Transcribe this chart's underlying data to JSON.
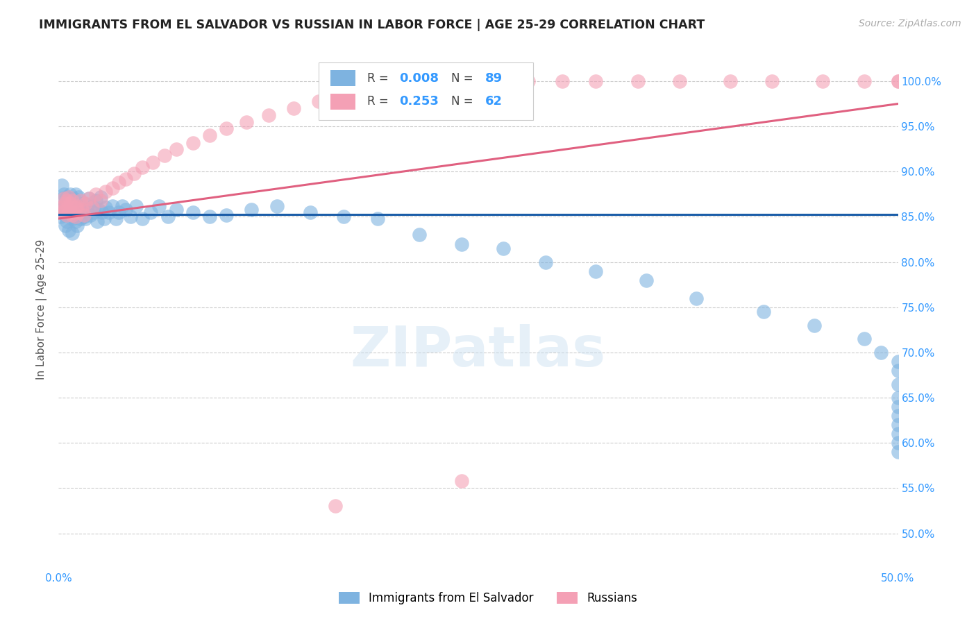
{
  "title": "IMMIGRANTS FROM EL SALVADOR VS RUSSIAN IN LABOR FORCE | AGE 25-29 CORRELATION CHART",
  "source": "Source: ZipAtlas.com",
  "ylabel": "In Labor Force | Age 25-29",
  "xlim": [
    0.0,
    0.5
  ],
  "ylim": [
    0.46,
    1.035
  ],
  "yticks": [
    0.5,
    0.55,
    0.6,
    0.65,
    0.7,
    0.75,
    0.8,
    0.85,
    0.9,
    0.95,
    1.0
  ],
  "ytick_labels": [
    "50.0%",
    "55.0%",
    "60.0%",
    "65.0%",
    "70.0%",
    "75.0%",
    "80.0%",
    "85.0%",
    "90.0%",
    "95.0%",
    "100.0%"
  ],
  "xticks": [
    0.0,
    0.05,
    0.1,
    0.15,
    0.2,
    0.25,
    0.3,
    0.35,
    0.4,
    0.45,
    0.5
  ],
  "xtick_labels": [
    "0.0%",
    "",
    "",
    "",
    "",
    "",
    "",
    "",
    "",
    "",
    "50.0%"
  ],
  "color_salvador": "#7EB3E0",
  "color_russian": "#F4A0B5",
  "color_line_salvador": "#1B5DA8",
  "color_line_russian": "#E06080",
  "sal_line_y0": 0.853,
  "sal_line_y1": 0.853,
  "rus_line_y0": 0.848,
  "rus_line_y1": 0.975,
  "sal_x": [
    0.001,
    0.002,
    0.002,
    0.003,
    0.003,
    0.003,
    0.004,
    0.004,
    0.004,
    0.005,
    0.005,
    0.005,
    0.006,
    0.006,
    0.006,
    0.007,
    0.007,
    0.008,
    0.008,
    0.008,
    0.009,
    0.009,
    0.01,
    0.01,
    0.01,
    0.011,
    0.011,
    0.012,
    0.012,
    0.013,
    0.013,
    0.014,
    0.015,
    0.015,
    0.016,
    0.017,
    0.018,
    0.019,
    0.02,
    0.021,
    0.022,
    0.023,
    0.024,
    0.025,
    0.026,
    0.027,
    0.028,
    0.03,
    0.032,
    0.034,
    0.036,
    0.038,
    0.04,
    0.043,
    0.046,
    0.05,
    0.055,
    0.06,
    0.065,
    0.07,
    0.08,
    0.09,
    0.1,
    0.115,
    0.13,
    0.15,
    0.17,
    0.19,
    0.215,
    0.24,
    0.265,
    0.29,
    0.32,
    0.35,
    0.38,
    0.42,
    0.45,
    0.48,
    0.49,
    0.5,
    0.5,
    0.5,
    0.5,
    0.5,
    0.5,
    0.5,
    0.5,
    0.5,
    0.5
  ],
  "sal_y": [
    0.85,
    0.87,
    0.885,
    0.86,
    0.875,
    0.855,
    0.852,
    0.865,
    0.84,
    0.858,
    0.872,
    0.845,
    0.855,
    0.868,
    0.835,
    0.86,
    0.875,
    0.848,
    0.862,
    0.832,
    0.856,
    0.87,
    0.845,
    0.86,
    0.875,
    0.852,
    0.84,
    0.858,
    0.872,
    0.848,
    0.862,
    0.855,
    0.85,
    0.865,
    0.848,
    0.858,
    0.87,
    0.852,
    0.862,
    0.855,
    0.868,
    0.845,
    0.858,
    0.872,
    0.855,
    0.848,
    0.86,
    0.855,
    0.862,
    0.848,
    0.855,
    0.862,
    0.858,
    0.85,
    0.862,
    0.848,
    0.855,
    0.862,
    0.85,
    0.858,
    0.855,
    0.85,
    0.852,
    0.858,
    0.862,
    0.855,
    0.85,
    0.848,
    0.83,
    0.82,
    0.815,
    0.8,
    0.79,
    0.78,
    0.76,
    0.745,
    0.73,
    0.715,
    0.7,
    0.69,
    0.68,
    0.665,
    0.65,
    0.64,
    0.63,
    0.62,
    0.61,
    0.6,
    0.59
  ],
  "rus_x": [
    0.001,
    0.002,
    0.003,
    0.003,
    0.004,
    0.004,
    0.005,
    0.005,
    0.006,
    0.006,
    0.007,
    0.007,
    0.008,
    0.008,
    0.009,
    0.01,
    0.01,
    0.011,
    0.012,
    0.013,
    0.014,
    0.015,
    0.016,
    0.018,
    0.02,
    0.022,
    0.025,
    0.028,
    0.032,
    0.036,
    0.04,
    0.045,
    0.05,
    0.056,
    0.063,
    0.07,
    0.08,
    0.09,
    0.1,
    0.112,
    0.125,
    0.14,
    0.155,
    0.17,
    0.185,
    0.2,
    0.22,
    0.24,
    0.26,
    0.28,
    0.3,
    0.32,
    0.345,
    0.37,
    0.4,
    0.425,
    0.455,
    0.48,
    0.5,
    0.5,
    0.165,
    0.24
  ],
  "rus_y": [
    0.856,
    0.86,
    0.855,
    0.87,
    0.858,
    0.865,
    0.852,
    0.868,
    0.855,
    0.872,
    0.858,
    0.865,
    0.852,
    0.868,
    0.855,
    0.86,
    0.85,
    0.862,
    0.855,
    0.868,
    0.858,
    0.852,
    0.865,
    0.87,
    0.86,
    0.875,
    0.868,
    0.878,
    0.882,
    0.888,
    0.892,
    0.898,
    0.905,
    0.91,
    0.918,
    0.925,
    0.932,
    0.94,
    0.948,
    0.955,
    0.962,
    0.97,
    0.978,
    0.985,
    0.99,
    0.995,
    0.998,
    1.0,
    1.0,
    1.0,
    1.0,
    1.0,
    1.0,
    1.0,
    1.0,
    1.0,
    1.0,
    1.0,
    1.0,
    1.0,
    0.53,
    0.558
  ]
}
